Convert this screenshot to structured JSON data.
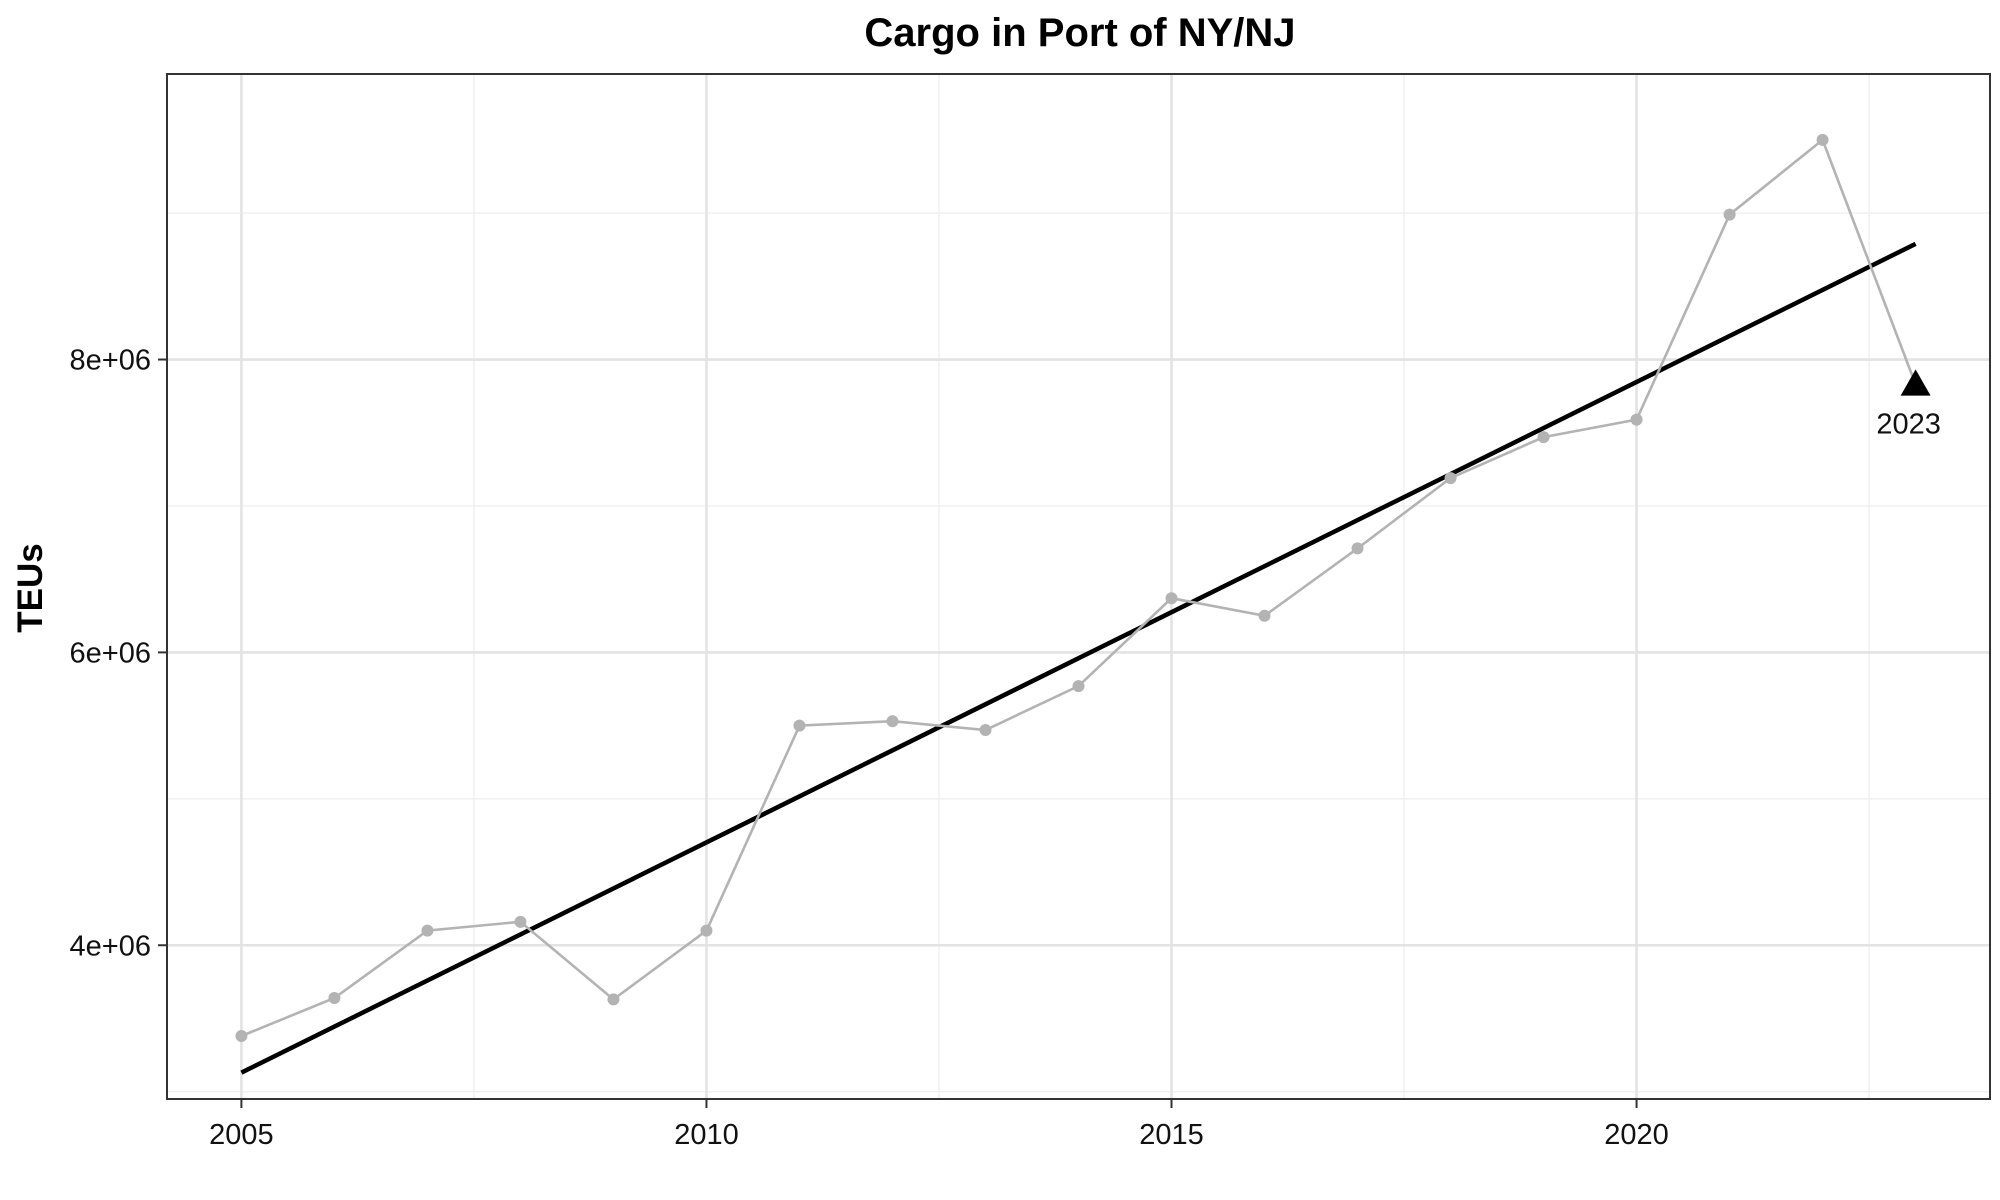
{
  "chart_data": {
    "type": "line",
    "title": "Cargo in Port of NY/NJ",
    "xlabel": "",
    "ylabel": "TEUs",
    "xlim": [
      2004.2,
      2023.8
    ],
    "ylim": [
      2950000,
      9950000
    ],
    "x_ticks": [
      2005,
      2010,
      2015,
      2020
    ],
    "x_tick_labels": [
      "2005",
      "2010",
      "2015",
      "2020"
    ],
    "x_minor_ticks": [
      2007.5,
      2012.5,
      2017.5,
      2022.5
    ],
    "y_ticks": [
      4000000,
      6000000,
      8000000
    ],
    "y_tick_labels": [
      "4e+06",
      "6e+06",
      "8e+06"
    ],
    "y_minor_ticks": [
      3000000,
      5000000,
      7000000,
      9000000
    ],
    "grid": true,
    "legend": "none",
    "colors": {
      "series_line": "#b3b3b3",
      "trend_line": "#000000",
      "highlight_point": "#000000",
      "grid_major": "#e3e3e3",
      "grid_minor": "#efefef",
      "panel_border": "#333333"
    },
    "series": [
      {
        "x": [
          2005,
          2006,
          2007,
          2008,
          2009,
          2010,
          2011,
          2012,
          2013,
          2014,
          2015,
          2016,
          2017,
          2018,
          2019,
          2020,
          2021,
          2022
        ],
        "values": [
          3380000,
          3640000,
          4100000,
          4160000,
          3630000,
          4100000,
          5500000,
          5530000,
          5470000,
          5770000,
          6370000,
          6250000,
          6710000,
          7190000,
          7470000,
          7590000,
          8990000,
          9500000
        ]
      }
    ],
    "trend_line": {
      "x": [
        2005,
        2023
      ],
      "values": [
        3130000,
        8790000
      ]
    },
    "highlight_point": {
      "x": 2023,
      "value": 7830000,
      "marker": "triangle",
      "label": "2023"
    }
  }
}
